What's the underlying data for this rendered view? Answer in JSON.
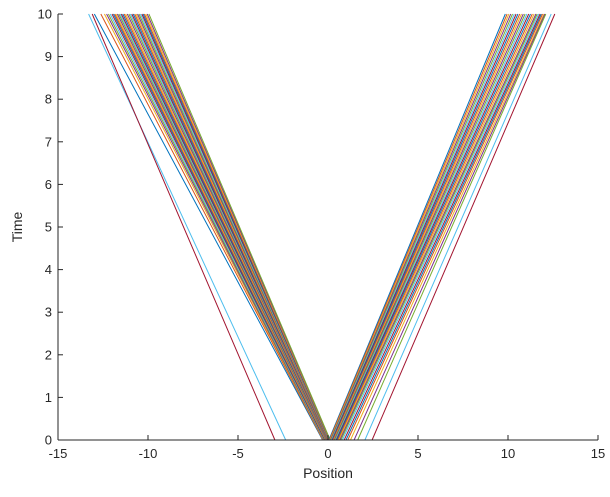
{
  "chart_data": {
    "type": "line",
    "title": "",
    "xlabel": "Position",
    "ylabel": "Time",
    "xlim": [
      -15,
      15
    ],
    "ylim": [
      0,
      10
    ],
    "xticks": [
      -15,
      -10,
      -5,
      0,
      5,
      10,
      15
    ],
    "yticks": [
      0,
      1,
      2,
      3,
      4,
      5,
      6,
      7,
      8,
      9,
      10
    ],
    "xtick_labels": [
      "-15",
      "-10",
      "-5",
      "0",
      "5",
      "10",
      "15"
    ],
    "ytick_labels": [
      "0",
      "1",
      "2",
      "3",
      "4",
      "5",
      "6",
      "7",
      "8",
      "9",
      "10"
    ],
    "grid": false,
    "legend": "none",
    "series_colors": [
      "#0072BD",
      "#D95319",
      "#EDB120",
      "#7E2F8E",
      "#77AC30",
      "#4DBEEE",
      "#A2142F"
    ],
    "series": [
      {
        "x": [
          -0.3,
          -12.98
        ],
        "y": [
          0,
          10
        ]
      },
      {
        "x": [
          -0.28,
          -12.62
        ],
        "y": [
          0,
          10
        ]
      },
      {
        "x": [
          -0.26,
          -12.42
        ],
        "y": [
          0,
          10
        ]
      },
      {
        "x": [
          -0.24,
          -12.3
        ],
        "y": [
          0,
          10
        ]
      },
      {
        "x": [
          -0.22,
          -12.2
        ],
        "y": [
          0,
          10
        ]
      },
      {
        "x": [
          -0.2,
          -12.1
        ],
        "y": [
          0,
          10
        ]
      },
      {
        "x": [
          -0.18,
          -12.0
        ],
        "y": [
          0,
          10
        ]
      },
      {
        "x": [
          -0.16,
          -11.92
        ],
        "y": [
          0,
          10
        ]
      },
      {
        "x": [
          -0.14,
          -11.85
        ],
        "y": [
          0,
          10
        ]
      },
      {
        "x": [
          -0.12,
          -11.78
        ],
        "y": [
          0,
          10
        ]
      },
      {
        "x": [
          -0.1,
          -11.7
        ],
        "y": [
          0,
          10
        ]
      },
      {
        "x": [
          -0.08,
          -11.62
        ],
        "y": [
          0,
          10
        ]
      },
      {
        "x": [
          -0.06,
          -11.55
        ],
        "y": [
          0,
          10
        ]
      },
      {
        "x": [
          -0.05,
          -11.48
        ],
        "y": [
          0,
          10
        ]
      },
      {
        "x": [
          -0.04,
          -11.4
        ],
        "y": [
          0,
          10
        ]
      },
      {
        "x": [
          -0.03,
          -11.32
        ],
        "y": [
          0,
          10
        ]
      },
      {
        "x": [
          -0.02,
          -11.24
        ],
        "y": [
          0,
          10
        ]
      },
      {
        "x": [
          -0.01,
          -11.15
        ],
        "y": [
          0,
          10
        ]
      },
      {
        "x": [
          0.0,
          -11.06
        ],
        "y": [
          0,
          10
        ]
      },
      {
        "x": [
          0.0,
          -10.98
        ],
        "y": [
          0,
          10
        ]
      },
      {
        "x": [
          0.0,
          -10.9
        ],
        "y": [
          0,
          10
        ]
      },
      {
        "x": [
          0.01,
          -10.82
        ],
        "y": [
          0,
          10
        ]
      },
      {
        "x": [
          0.02,
          -10.74
        ],
        "y": [
          0,
          10
        ]
      },
      {
        "x": [
          0.03,
          -10.66
        ],
        "y": [
          0,
          10
        ]
      },
      {
        "x": [
          0.04,
          -10.58
        ],
        "y": [
          0,
          10
        ]
      },
      {
        "x": [
          0.05,
          -10.5
        ],
        "y": [
          0,
          10
        ]
      },
      {
        "x": [
          0.06,
          -10.42
        ],
        "y": [
          0,
          10
        ]
      },
      {
        "x": [
          0.07,
          -10.34
        ],
        "y": [
          0,
          10
        ]
      },
      {
        "x": [
          0.08,
          -10.27
        ],
        "y": [
          0,
          10
        ]
      },
      {
        "x": [
          0.09,
          -10.2
        ],
        "y": [
          0,
          10
        ]
      },
      {
        "x": [
          0.1,
          -10.12
        ],
        "y": [
          0,
          10
        ]
      },
      {
        "x": [
          0.11,
          -10.04
        ],
        "y": [
          0,
          10
        ]
      },
      {
        "x": [
          0.12,
          -9.95
        ],
        "y": [
          0,
          10
        ]
      },
      {
        "x": [
          -2.35,
          -13.3
        ],
        "y": [
          0,
          10
        ]
      },
      {
        "x": [
          -2.95,
          -13.1
        ],
        "y": [
          0,
          10
        ]
      },
      {
        "x": [
          0.05,
          9.85
        ],
        "y": [
          0,
          10
        ]
      },
      {
        "x": [
          0.08,
          9.95
        ],
        "y": [
          0,
          10
        ]
      },
      {
        "x": [
          0.11,
          10.05
        ],
        "y": [
          0,
          10
        ]
      },
      {
        "x": [
          0.14,
          10.15
        ],
        "y": [
          0,
          10
        ]
      },
      {
        "x": [
          0.17,
          10.25
        ],
        "y": [
          0,
          10
        ]
      },
      {
        "x": [
          0.2,
          10.35
        ],
        "y": [
          0,
          10
        ]
      },
      {
        "x": [
          0.23,
          10.45
        ],
        "y": [
          0,
          10
        ]
      },
      {
        "x": [
          0.26,
          10.55
        ],
        "y": [
          0,
          10
        ]
      },
      {
        "x": [
          0.29,
          10.65
        ],
        "y": [
          0,
          10
        ]
      },
      {
        "x": [
          0.32,
          10.75
        ],
        "y": [
          0,
          10
        ]
      },
      {
        "x": [
          0.35,
          10.85
        ],
        "y": [
          0,
          10
        ]
      },
      {
        "x": [
          0.38,
          10.95
        ],
        "y": [
          0,
          10
        ]
      },
      {
        "x": [
          0.42,
          11.05
        ],
        "y": [
          0,
          10
        ]
      },
      {
        "x": [
          0.46,
          11.15
        ],
        "y": [
          0,
          10
        ]
      },
      {
        "x": [
          0.5,
          11.25
        ],
        "y": [
          0,
          10
        ]
      },
      {
        "x": [
          0.55,
          11.35
        ],
        "y": [
          0,
          10
        ]
      },
      {
        "x": [
          0.6,
          11.45
        ],
        "y": [
          0,
          10
        ]
      },
      {
        "x": [
          0.66,
          11.55
        ],
        "y": [
          0,
          10
        ]
      },
      {
        "x": [
          0.72,
          11.62
        ],
        "y": [
          0,
          10
        ]
      },
      {
        "x": [
          0.8,
          11.7
        ],
        "y": [
          0,
          10
        ]
      },
      {
        "x": [
          0.9,
          11.78
        ],
        "y": [
          0,
          10
        ]
      },
      {
        "x": [
          1.0,
          11.85
        ],
        "y": [
          0,
          10
        ]
      },
      {
        "x": [
          1.1,
          11.92
        ],
        "y": [
          0,
          10
        ]
      },
      {
        "x": [
          1.25,
          12.0
        ],
        "y": [
          0,
          10
        ]
      },
      {
        "x": [
          1.45,
          12.05
        ],
        "y": [
          0,
          10
        ]
      },
      {
        "x": [
          1.65,
          12.1
        ],
        "y": [
          0,
          10
        ]
      },
      {
        "x": [
          2.05,
          12.4
        ],
        "y": [
          0,
          10
        ]
      },
      {
        "x": [
          2.45,
          12.6
        ],
        "y": [
          0,
          10
        ]
      }
    ]
  }
}
